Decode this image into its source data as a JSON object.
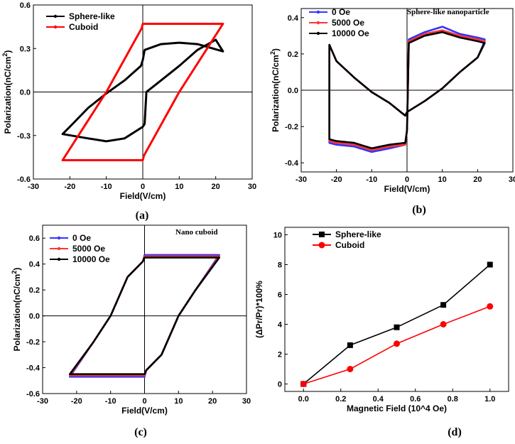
{
  "chart_data": [
    {
      "id": "a",
      "type": "line",
      "panel_label": "(a)",
      "xlabel": "Field(V/cm)",
      "ylabel": "Polarization(nC/cm",
      "ylabel_sup": "2",
      "ylabel_end": ")",
      "xlim": [
        -30,
        30
      ],
      "ylim": [
        -0.6,
        0.6
      ],
      "xticks": [
        -30,
        -20,
        -10,
        0,
        10,
        20,
        30
      ],
      "yticks": [
        -0.6,
        -0.3,
        0.0,
        0.3,
        0.6
      ],
      "ytick_labels": [
        "-0.6",
        "-0.3",
        "0.0",
        "0.3",
        "0.6"
      ],
      "annotation": "",
      "series": [
        {
          "name": "Sphere-like",
          "color": "#000000",
          "x": [
            -22,
            -15,
            -10,
            -5,
            0,
            0.5,
            1,
            5,
            10,
            15,
            20,
            22,
            22,
            15,
            10,
            5,
            0.5,
            0,
            -0.5,
            -5,
            -10,
            -15,
            -20,
            -22
          ],
          "y": [
            -0.29,
            -0.32,
            -0.34,
            -0.32,
            -0.24,
            -0.22,
            0.0,
            0.08,
            0.18,
            0.29,
            0.36,
            0.28,
            0.28,
            0.33,
            0.34,
            0.33,
            0.29,
            0.22,
            0.18,
            0.08,
            -0.01,
            -0.11,
            -0.24,
            -0.29
          ]
        },
        {
          "name": "Cuboid",
          "color": "#ff0000",
          "x": [
            -22,
            -12,
            0,
            0.3,
            10,
            22,
            22,
            10,
            0,
            -0.3,
            -10,
            -22
          ],
          "y": [
            -0.47,
            -0.47,
            -0.47,
            -0.44,
            0.0,
            0.47,
            0.47,
            0.47,
            0.47,
            0.44,
            0.0,
            -0.47
          ]
        }
      ]
    },
    {
      "id": "b",
      "type": "line",
      "panel_label": "(b)",
      "xlabel": "Field(V/cm)",
      "ylabel": "Polarization(nC/cm",
      "ylabel_sup": "2",
      "ylabel_end": ")",
      "xlim": [
        -30,
        30
      ],
      "ylim": [
        -0.45,
        0.45
      ],
      "xticks": [
        -30,
        -20,
        -10,
        0,
        10,
        20,
        30
      ],
      "yticks": [
        -0.4,
        -0.2,
        0.0,
        0.2,
        0.4
      ],
      "ytick_labels": [
        "-0.4",
        "-0.2",
        "0.0",
        "0.2",
        "0.4"
      ],
      "annotation": "Sphere-like nanoparticle",
      "series": [
        {
          "name": "0 Oe",
          "color": "#3333ff",
          "x": [
            -22,
            -20,
            -15,
            -10,
            -5,
            -0.5,
            0,
            0.5,
            5,
            10,
            15,
            20,
            22,
            22,
            20,
            15,
            10,
            5,
            0,
            -0.5,
            -5,
            -10,
            -15,
            -20,
            -22
          ],
          "y": [
            -0.29,
            -0.3,
            -0.31,
            -0.34,
            -0.32,
            -0.3,
            -0.22,
            0.28,
            0.32,
            0.35,
            0.31,
            0.29,
            0.28,
            0.27,
            0.18,
            0.1,
            0.01,
            -0.06,
            -0.12,
            -0.14,
            -0.07,
            -0.01,
            0.07,
            0.16,
            0.25
          ]
        },
        {
          "name": "5000 Oe",
          "color": "#ff3333",
          "x": [
            -22,
            -20,
            -15,
            -10,
            -5,
            -0.5,
            0,
            0.5,
            5,
            10,
            15,
            20,
            22,
            22,
            20,
            15,
            10,
            5,
            0,
            -0.5,
            -5,
            -10,
            -15,
            -20,
            -22
          ],
          "y": [
            -0.28,
            -0.29,
            -0.3,
            -0.33,
            -0.31,
            -0.3,
            -0.22,
            0.27,
            0.31,
            0.33,
            0.3,
            0.28,
            0.27,
            0.26,
            0.18,
            0.1,
            0.01,
            -0.06,
            -0.12,
            -0.14,
            -0.07,
            -0.01,
            0.07,
            0.16,
            0.25
          ]
        },
        {
          "name": "10000 Oe",
          "color": "#000000",
          "x": [
            -22,
            -20,
            -15,
            -10,
            -5,
            -0.5,
            0,
            0.5,
            5,
            10,
            15,
            20,
            22,
            22,
            20,
            15,
            10,
            5,
            0,
            -0.5,
            -5,
            -10,
            -15,
            -20,
            -22
          ],
          "y": [
            -0.27,
            -0.28,
            -0.29,
            -0.32,
            -0.3,
            -0.29,
            -0.22,
            0.26,
            0.3,
            0.32,
            0.29,
            0.27,
            0.26,
            0.26,
            0.18,
            0.1,
            0.01,
            -0.06,
            -0.12,
            -0.14,
            -0.07,
            -0.01,
            0.07,
            0.16,
            0.25
          ]
        }
      ]
    },
    {
      "id": "c",
      "type": "line",
      "panel_label": "(c)",
      "xlabel": "Field(V/cm)",
      "ylabel": "Polarization(nC/cm",
      "ylabel_sup": "2",
      "ylabel_end": ")",
      "xlim": [
        -30,
        30
      ],
      "ylim": [
        -0.6,
        0.7
      ],
      "xticks": [
        -30,
        -20,
        -10,
        0,
        10,
        20,
        30
      ],
      "yticks": [
        -0.6,
        -0.4,
        -0.2,
        0.0,
        0.2,
        0.4,
        0.6
      ],
      "ytick_labels": [
        "-0.6",
        "-0.4",
        "-0.2",
        "0.0",
        "0.2",
        "0.4",
        "0.6"
      ],
      "annotation": "Nano cuboid",
      "series": [
        {
          "name": "0 Oe",
          "color": "#3333ff",
          "x": [
            -22,
            -10,
            0,
            0.5,
            5,
            10,
            15,
            22,
            22,
            10,
            0,
            -0.5,
            -5,
            -10,
            -15,
            -22
          ],
          "y": [
            -0.47,
            -0.47,
            -0.47,
            -0.42,
            -0.3,
            0.0,
            0.2,
            0.47,
            0.47,
            0.47,
            0.47,
            0.42,
            0.3,
            0.0,
            -0.2,
            -0.47
          ]
        },
        {
          "name": "5000 Oe",
          "color": "#ff3333",
          "x": [
            -22,
            -10,
            0,
            0.5,
            5,
            10,
            15,
            22,
            22,
            10,
            0,
            -0.5,
            -5,
            -10,
            -15,
            -22
          ],
          "y": [
            -0.46,
            -0.46,
            -0.46,
            -0.42,
            -0.3,
            0.0,
            0.2,
            0.46,
            0.46,
            0.46,
            0.46,
            0.42,
            0.3,
            0.0,
            -0.2,
            -0.46
          ]
        },
        {
          "name": "10000 Oe",
          "color": "#000000",
          "x": [
            -22,
            -10,
            0,
            0.5,
            5,
            10,
            15,
            22,
            22,
            10,
            0,
            -0.5,
            -5,
            -10,
            -15,
            -22
          ],
          "y": [
            -0.45,
            -0.45,
            -0.45,
            -0.42,
            -0.3,
            0.0,
            0.2,
            0.45,
            0.45,
            0.45,
            0.45,
            0.42,
            0.3,
            0.0,
            -0.2,
            -0.45
          ]
        }
      ]
    },
    {
      "id": "d",
      "type": "line",
      "panel_label": "(d)",
      "xlabel": "Magnetic Field (10^4 Oe)",
      "ylabel": "(ΔPr/Pr)*100%",
      "ylabel_sup": "",
      "ylabel_end": "",
      "xlim": [
        -0.1,
        1.1
      ],
      "ylim": [
        -0.5,
        10.5
      ],
      "xticks": [
        0.0,
        0.2,
        0.4,
        0.6,
        0.8,
        1.0
      ],
      "xtick_labels": [
        "0.0",
        "0.2",
        "0.4",
        "0.6",
        "0.8",
        "1.0"
      ],
      "yticks": [
        0,
        2,
        4,
        6,
        8,
        10
      ],
      "ytick_labels": [
        "0",
        "2",
        "4",
        "6",
        "8",
        "10"
      ],
      "annotation": "",
      "series": [
        {
          "name": "Sphere-like",
          "color": "#000000",
          "marker": "square",
          "x": [
            0,
            0.25,
            0.5,
            0.75,
            1.0
          ],
          "y": [
            0,
            2.6,
            3.8,
            5.3,
            8.0
          ]
        },
        {
          "name": "Cuboid",
          "color": "#ff0000",
          "marker": "circle",
          "x": [
            0,
            0.25,
            0.5,
            0.75,
            1.0
          ],
          "y": [
            0,
            1.0,
            2.7,
            4.0,
            5.2
          ]
        }
      ]
    }
  ]
}
